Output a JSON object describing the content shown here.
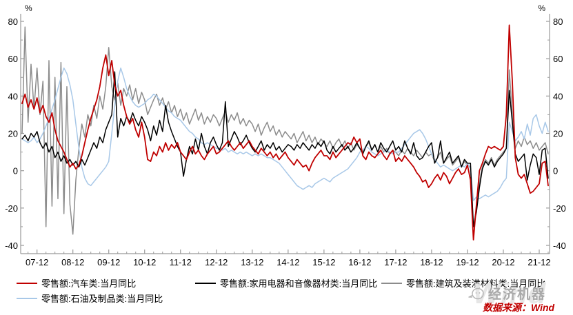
{
  "chart_data": {
    "type": "line",
    "title": "",
    "unit_left": "%",
    "unit_right": "%",
    "ylim": [
      -40,
      80
    ],
    "y_major_ticks": [
      80,
      60,
      40,
      20,
      0,
      -20,
      -40
    ],
    "y_minor_ticks": [
      70,
      50,
      30,
      10,
      -10,
      -30
    ],
    "x_tick_labels": [
      "07-12",
      "08-12",
      "09-12",
      "10-12",
      "11-12",
      "12-12",
      "13-12",
      "14-12",
      "15-12",
      "16-12",
      "17-12",
      "18-12",
      "19-12",
      "20-12",
      "21-12"
    ],
    "x_start_month": "2007-07",
    "x_end_month": "2022-03",
    "frequency": "monthly",
    "grid": false,
    "legend_position": "bottom",
    "series": [
      {
        "name": "零售额:汽车类:当月同比",
        "color": "#c00000",
        "values": [
          36,
          41,
          34,
          38,
          33,
          39,
          31,
          35,
          29,
          26,
          31,
          22,
          16,
          13,
          10,
          6,
          2,
          4,
          1,
          3,
          8,
          15,
          22,
          28,
          33,
          38,
          45,
          55,
          62,
          51,
          59,
          46,
          40,
          43,
          35,
          29,
          25,
          28,
          22,
          18,
          26,
          18,
          6,
          5,
          10,
          8,
          13,
          10,
          15,
          11,
          14,
          12,
          15,
          10,
          8,
          6,
          10,
          13,
          9,
          11,
          8,
          6,
          9,
          11,
          13,
          9,
          10,
          12,
          14,
          16,
          13,
          11,
          13,
          15,
          12,
          14,
          16,
          13,
          11,
          9,
          12,
          10,
          8,
          10,
          7,
          9,
          6,
          8,
          10,
          7,
          5,
          3,
          6,
          4,
          2,
          3,
          0,
          4,
          7,
          9,
          11,
          8,
          8,
          6,
          10,
          7,
          9,
          11,
          13,
          15,
          14,
          18,
          15,
          17,
          8,
          6,
          10,
          8,
          7,
          9,
          11,
          8,
          6,
          9,
          11,
          5,
          7,
          5,
          8,
          6,
          4,
          2,
          -1,
          -3,
          -6,
          -5,
          -9,
          -7,
          -4,
          -2,
          -5,
          -1,
          -3,
          -7,
          -4,
          -1,
          1,
          -2,
          -1,
          3,
          -5,
          -37,
          -18,
          0,
          4,
          9,
          13,
          12,
          13,
          12,
          11,
          13,
          30,
          78,
          48,
          7,
          -2,
          -4,
          -2,
          -7,
          -12,
          -11,
          -9,
          -7,
          4,
          5,
          -8
        ]
      },
      {
        "name": "零售额:家用电器和音像器材类:当月同比",
        "color": "#000000",
        "values": [
          17,
          19,
          16,
          20,
          18,
          21,
          15,
          12,
          15,
          10,
          13,
          7,
          10,
          5,
          8,
          4,
          6,
          3,
          5,
          2,
          6,
          3,
          7,
          11,
          15,
          12,
          18,
          15,
          22,
          26,
          30,
          53,
          18,
          28,
          24,
          29,
          26,
          31,
          27,
          24,
          29,
          26,
          22,
          16,
          24,
          19,
          27,
          21,
          35,
          26,
          21,
          17,
          13,
          10,
          -3,
          6,
          13,
          9,
          17,
          11,
          20,
          13,
          9,
          15,
          18,
          14,
          11,
          15,
          37,
          13,
          17,
          21,
          18,
          14,
          16,
          19,
          15,
          12,
          10,
          13,
          16,
          11,
          14,
          12,
          15,
          11,
          13,
          10,
          12,
          14,
          13,
          11,
          14,
          12,
          15,
          13,
          11,
          14,
          12,
          15,
          13,
          16,
          11,
          9,
          13,
          10,
          12,
          14,
          11,
          13,
          10,
          12,
          15,
          12,
          9,
          13,
          16,
          11,
          14,
          10,
          15,
          12,
          10,
          13,
          16,
          11,
          13,
          10,
          16,
          12,
          9,
          15,
          8,
          6,
          7,
          10,
          13,
          15,
          4,
          7,
          16,
          4,
          7,
          10,
          4,
          6,
          8,
          2,
          6,
          4,
          4,
          -30,
          -22,
          -9,
          1,
          5,
          3,
          6,
          2,
          5,
          7,
          9,
          12,
          43,
          26,
          9,
          5,
          7,
          9,
          -5,
          3,
          9,
          7,
          -2,
          11,
          12,
          -4
        ]
      },
      {
        "name": "零售额:建筑及装潢材料类:当月同比",
        "color": "#8c8c8c",
        "values": [
          20,
          77,
          26,
          57,
          33,
          55,
          30,
          48,
          -30,
          59,
          -19,
          50,
          -15,
          58,
          -23,
          45,
          -18,
          -34,
          -5,
          12,
          25,
          18,
          30,
          24,
          35,
          28,
          40,
          33,
          45,
          66,
          45,
          38,
          47,
          35,
          44,
          40,
          46,
          38,
          44,
          36,
          42,
          38,
          30,
          34,
          38,
          41,
          35,
          39,
          33,
          37,
          31,
          35,
          29,
          33,
          27,
          31,
          25,
          29,
          33,
          27,
          31,
          25,
          29,
          26,
          30,
          28,
          24,
          28,
          32,
          26,
          30,
          27,
          31,
          25,
          28,
          24,
          27,
          25,
          21,
          25,
          19,
          23,
          26,
          21,
          24,
          19,
          22,
          18,
          21,
          19,
          17,
          20,
          15,
          18,
          21,
          16,
          19,
          15,
          18,
          14,
          17,
          15,
          13,
          16,
          12,
          15,
          17,
          13,
          16,
          12,
          15,
          11,
          14,
          12,
          10,
          13,
          15,
          11,
          14,
          10,
          13,
          10,
          12,
          9,
          11,
          10,
          8,
          11,
          9,
          12,
          10,
          8,
          11,
          9,
          7,
          10,
          8,
          9,
          5,
          7,
          10,
          4,
          6,
          8,
          3,
          5,
          7,
          2,
          5,
          3,
          2,
          -30,
          -20,
          -6,
          2,
          6,
          4,
          7,
          3,
          6,
          8,
          10,
          12,
          54,
          30,
          12,
          16,
          13,
          18,
          14,
          16,
          12,
          15,
          11,
          13,
          15,
          9
        ]
      },
      {
        "name": "零售额:石油及制品类:当月同比",
        "color": "#a8c8e8",
        "values": [
          17,
          16,
          15,
          16,
          18,
          15,
          17,
          20,
          24,
          28,
          33,
          38,
          44,
          50,
          55,
          52,
          46,
          38,
          25,
          12,
          2,
          -4,
          -7,
          -8,
          -6,
          -4,
          -2,
          0,
          2,
          5,
          20,
          35,
          48,
          55,
          50,
          44,
          40,
          37,
          35,
          34,
          35,
          36,
          38,
          39,
          41,
          40,
          38,
          36,
          34,
          32,
          31,
          29,
          28,
          27,
          25,
          23,
          21,
          20,
          18,
          17,
          15,
          14,
          15,
          14,
          13,
          12,
          12,
          11,
          12,
          10,
          11,
          10,
          9,
          10,
          9,
          10,
          9,
          8,
          9,
          8,
          9,
          8,
          7,
          7,
          6,
          5,
          4,
          2,
          0,
          -2,
          -4,
          -6,
          -8,
          -9,
          -10,
          -9,
          -8,
          -9,
          -7,
          -6,
          -5,
          -4,
          -5,
          -6,
          -4,
          -3,
          -2,
          -1,
          0,
          1,
          3,
          5,
          7,
          10,
          11,
          13,
          12,
          10,
          9,
          8,
          9,
          10,
          11,
          10,
          9,
          10,
          10,
          12,
          14,
          16,
          18,
          20,
          21,
          22,
          20,
          17,
          13,
          9,
          6,
          4,
          2,
          3,
          2,
          1,
          0,
          1,
          2,
          3,
          2,
          4,
          1,
          -16,
          -14,
          -15,
          -14,
          -13,
          -14,
          -13,
          -12,
          -11,
          -9,
          -6,
          -4,
          26,
          21,
          16,
          18,
          21,
          17,
          25,
          19,
          28,
          30,
          24,
          20,
          26,
          21
        ]
      }
    ]
  },
  "footer": {
    "source_label": "数据来源：Wind",
    "watermark_text": "经济机器",
    "watermark_bg": "Wind"
  },
  "colors": {
    "accent_red": "#c00000",
    "axis": "#999999",
    "watermark_gray": "#a9a9a9"
  }
}
